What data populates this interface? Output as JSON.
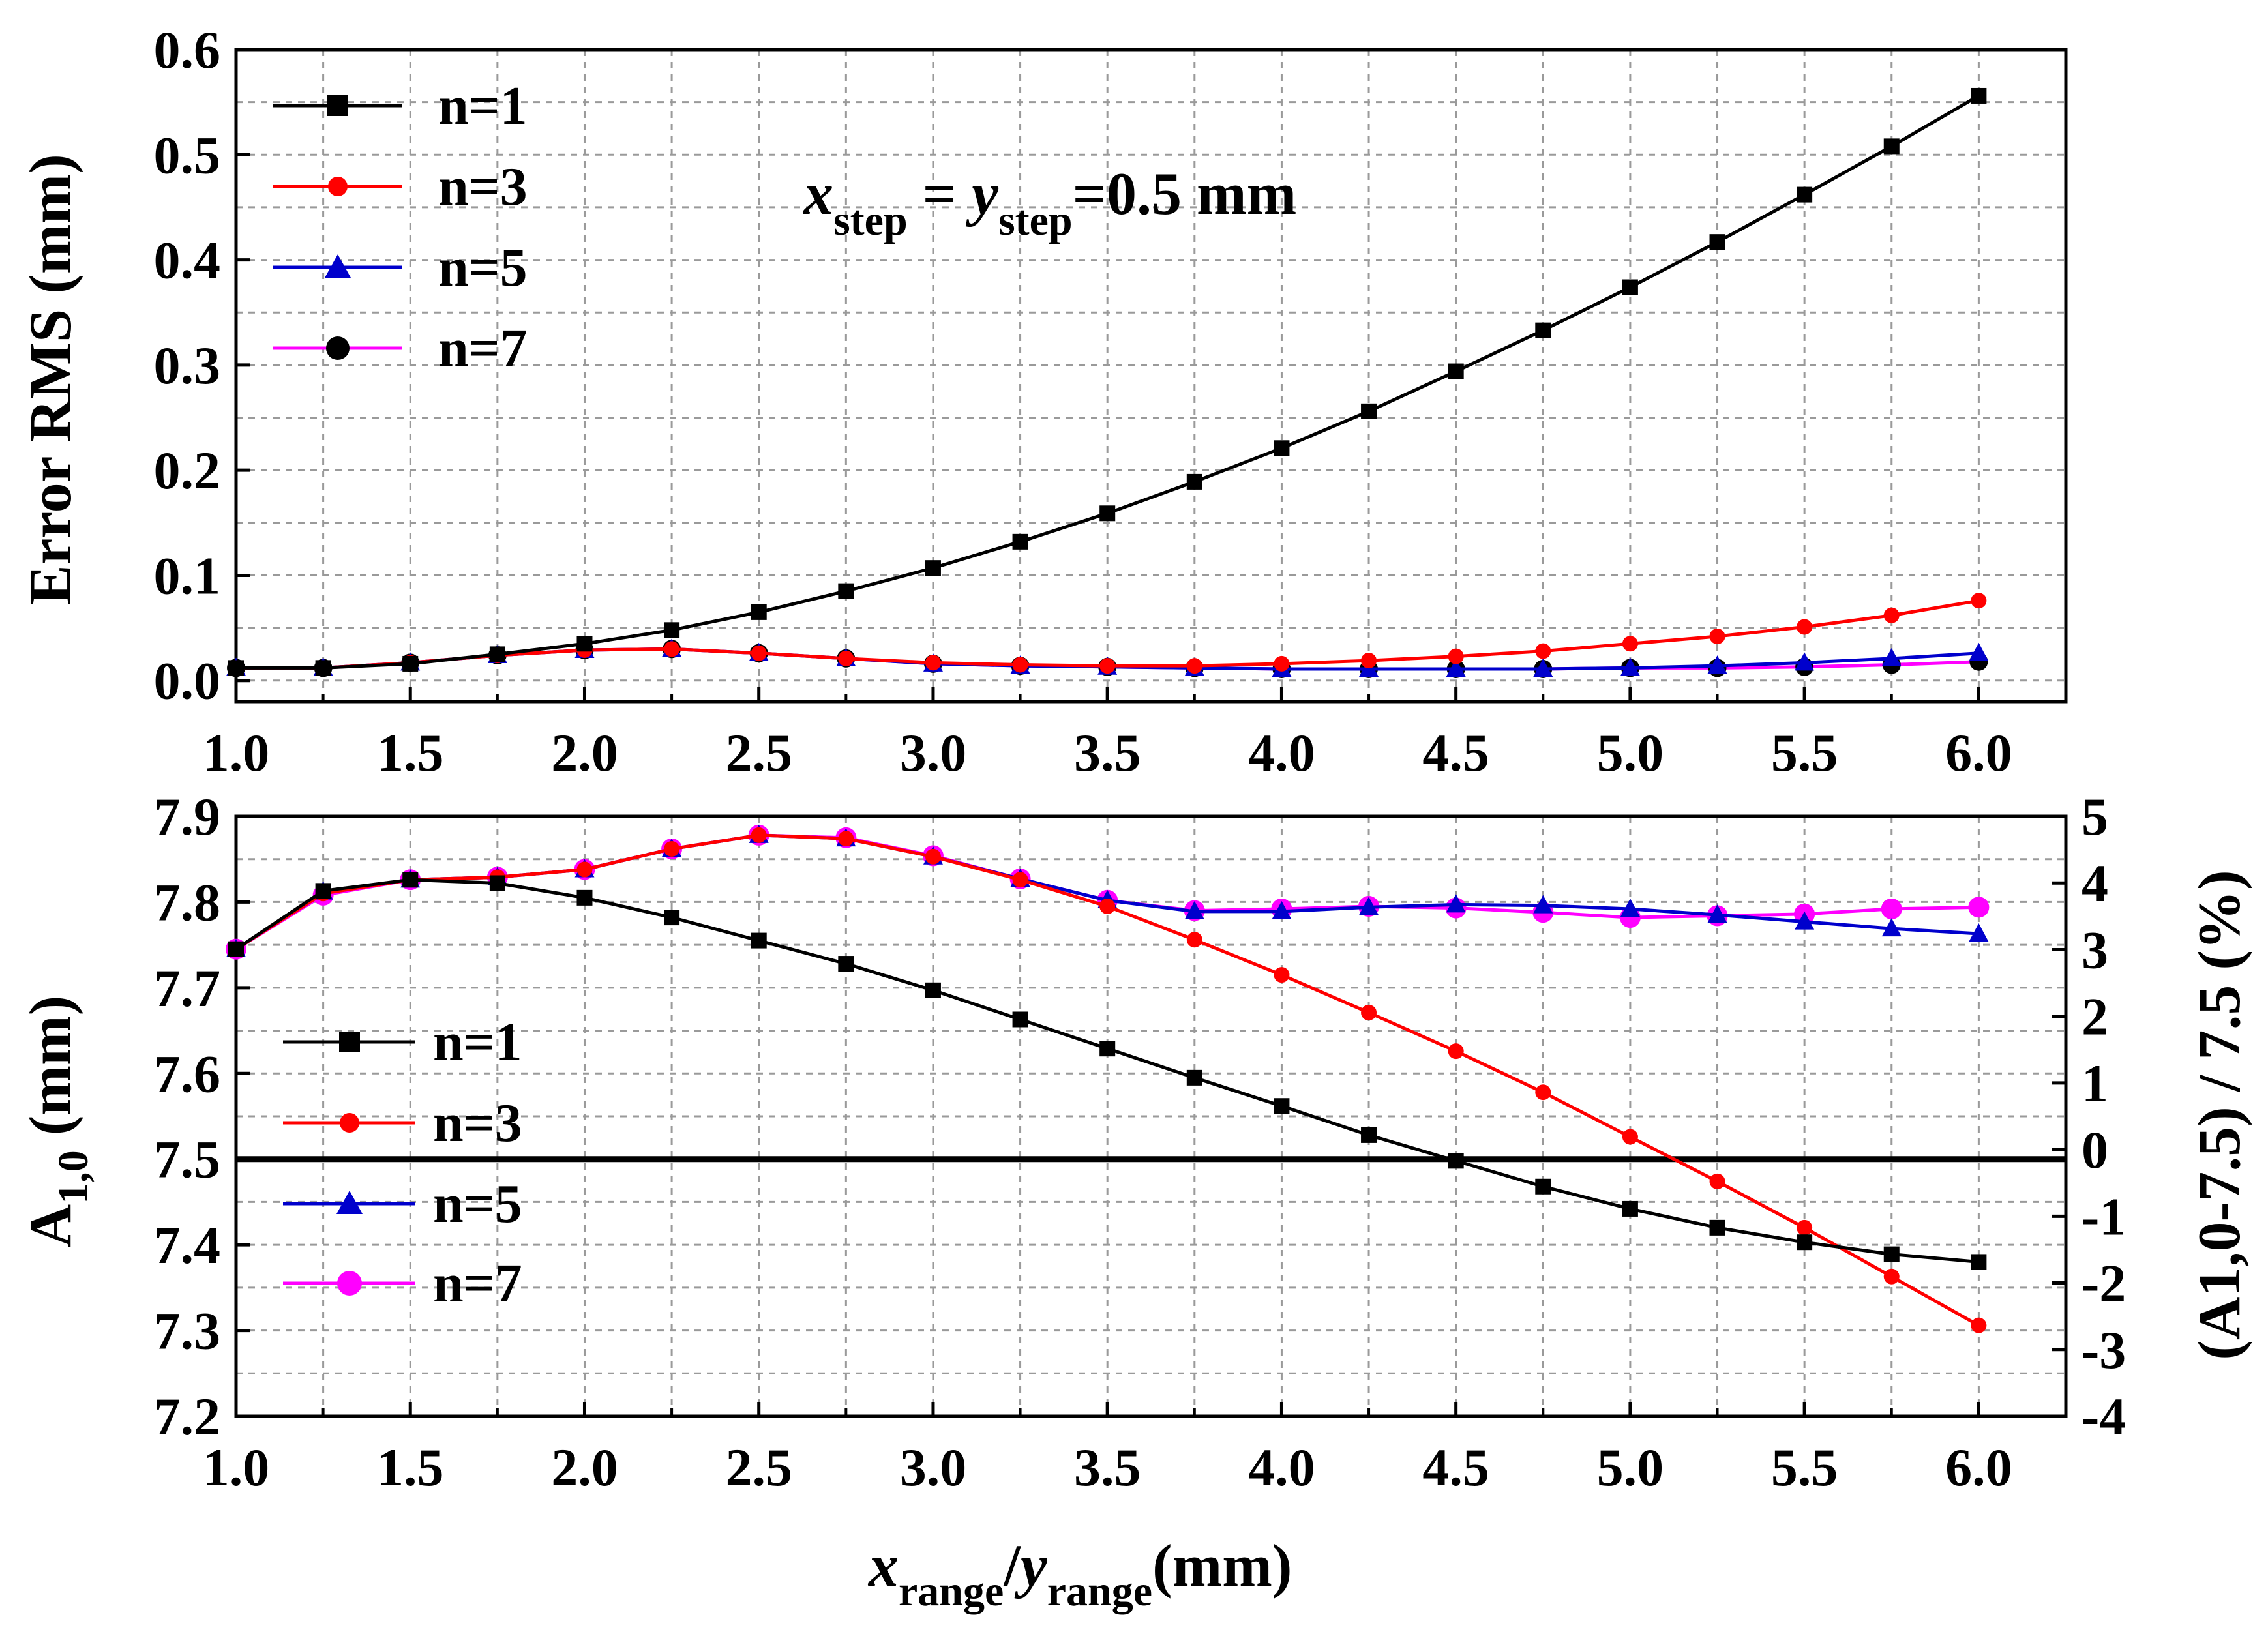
{
  "chart_data": [
    {
      "type": "line",
      "panel": "top",
      "ylabel": "Error RMS (mm)",
      "xlim": [
        1.0,
        6.25
      ],
      "ylim": [
        -0.02,
        0.6
      ],
      "x_tick_labels": [
        "1.0",
        "1.5",
        "2.0",
        "2.5",
        "3.0",
        "3.5",
        "4.0",
        "4.5",
        "5.0",
        "5.5",
        "6.0"
      ],
      "y_tick_labels": [
        "0.0",
        "0.1",
        "0.2",
        "0.3",
        "0.4",
        "0.5",
        "0.6"
      ],
      "y_tick_values": [
        0.0,
        0.1,
        0.2,
        0.3,
        0.4,
        0.5,
        0.6
      ],
      "grid": true,
      "legend_position": "top-left",
      "annotation": {
        "x_sym": "x",
        "x_sub": "step",
        "eq1": " = ",
        "y_sym": "y",
        "y_sub": "step",
        "rest": "=0.5 mm"
      },
      "x": [
        1.0,
        1.25,
        1.5,
        1.75,
        2.0,
        2.25,
        2.5,
        2.75,
        3.0,
        3.25,
        3.5,
        3.75,
        4.0,
        4.25,
        4.5,
        4.75,
        5.0,
        5.25,
        5.5,
        5.75,
        6.0
      ],
      "series": [
        {
          "name": "n=1",
          "color": "#000000",
          "marker": "square",
          "values": [
            0.012,
            0.012,
            0.016,
            0.025,
            0.035,
            0.048,
            0.065,
            0.085,
            0.107,
            0.132,
            0.159,
            0.189,
            0.221,
            0.256,
            0.294,
            0.333,
            0.374,
            0.417,
            0.462,
            0.508,
            0.556
          ]
        },
        {
          "name": "n=3",
          "color": "#ff0000",
          "marker": "circle-small",
          "values": [
            0.012,
            0.012,
            0.017,
            0.024,
            0.029,
            0.03,
            0.026,
            0.021,
            0.017,
            0.015,
            0.014,
            0.014,
            0.016,
            0.019,
            0.023,
            0.028,
            0.035,
            0.042,
            0.051,
            0.062,
            0.076
          ]
        },
        {
          "name": "n=5",
          "color": "#0000cc",
          "marker": "triangle",
          "values": [
            0.012,
            0.012,
            0.017,
            0.024,
            0.029,
            0.03,
            0.026,
            0.021,
            0.016,
            0.014,
            0.013,
            0.012,
            0.011,
            0.011,
            0.011,
            0.011,
            0.012,
            0.014,
            0.017,
            0.021,
            0.026
          ]
        },
        {
          "name": "n=7",
          "color": "#ff00ff",
          "marker": "circle-black",
          "values": [
            0.012,
            0.012,
            0.017,
            0.024,
            0.029,
            0.03,
            0.026,
            0.021,
            0.016,
            0.014,
            0.013,
            0.012,
            0.011,
            0.011,
            0.011,
            0.011,
            0.012,
            0.012,
            0.013,
            0.015,
            0.018
          ]
        }
      ]
    },
    {
      "type": "line",
      "panel": "bottom",
      "xlabel": {
        "x_sym": "x",
        "x_sub": "range",
        "slash": "/",
        "y_sym": "y",
        "y_sub": "range",
        "unit": "(mm)"
      },
      "ylabel": {
        "base": "A",
        "sub": "1,0",
        "unit": " (mm)"
      },
      "y2label": "(A1,0-7.5) / 7.5   (%)",
      "xlim": [
        1.0,
        6.25
      ],
      "ylim": [
        7.2,
        7.9
      ],
      "y2lim": [
        -4,
        5
      ],
      "x_tick_labels": [
        "1.0",
        "1.5",
        "2.0",
        "2.5",
        "3.0",
        "3.5",
        "4.0",
        "4.5",
        "5.0",
        "5.5",
        "6.0"
      ],
      "y_tick_labels": [
        "7.2",
        "7.3",
        "7.4",
        "7.5",
        "7.6",
        "7.7",
        "7.8",
        "7.9"
      ],
      "y_tick_values": [
        7.2,
        7.3,
        7.4,
        7.5,
        7.6,
        7.7,
        7.8,
        7.9
      ],
      "y2_tick_labels": [
        "-4",
        "-3",
        "-2",
        "-1",
        "0",
        "1",
        "2",
        "3",
        "4",
        "5"
      ],
      "y2_tick_values": [
        -4,
        -3,
        -2,
        -1,
        0,
        1,
        2,
        3,
        4,
        5
      ],
      "reference_line": 7.5,
      "grid": true,
      "legend_position": "middle-left",
      "x": [
        1.0,
        1.25,
        1.5,
        1.75,
        2.0,
        2.25,
        2.5,
        2.75,
        3.0,
        3.25,
        3.5,
        3.75,
        4.0,
        4.25,
        4.5,
        4.75,
        5.0,
        5.25,
        5.5,
        5.75,
        6.0
      ],
      "series": [
        {
          "name": "n=1",
          "color": "#000000",
          "marker": "square",
          "values": [
            7.745,
            7.813,
            7.826,
            7.822,
            7.805,
            7.782,
            7.755,
            7.728,
            7.697,
            7.663,
            7.629,
            7.595,
            7.562,
            7.528,
            7.498,
            7.468,
            7.442,
            7.42,
            7.403,
            7.389,
            7.38
          ]
        },
        {
          "name": "n=3",
          "color": "#ff0000",
          "marker": "circle-small",
          "values": [
            7.745,
            7.81,
            7.826,
            7.829,
            7.838,
            7.862,
            7.878,
            7.874,
            7.853,
            7.826,
            7.795,
            7.756,
            7.715,
            7.671,
            7.626,
            7.578,
            7.526,
            7.474,
            7.42,
            7.363,
            7.306
          ]
        },
        {
          "name": "n=5",
          "color": "#0000cc",
          "marker": "triangle",
          "values": [
            7.745,
            7.812,
            7.826,
            7.829,
            7.838,
            7.862,
            7.878,
            7.874,
            7.853,
            7.827,
            7.802,
            7.789,
            7.789,
            7.794,
            7.797,
            7.796,
            7.792,
            7.785,
            7.777,
            7.769,
            7.763
          ]
        },
        {
          "name": "n=7",
          "color": "#ff00ff",
          "marker": "circle-large",
          "values": [
            7.745,
            7.808,
            7.826,
            7.829,
            7.838,
            7.862,
            7.878,
            7.875,
            7.854,
            7.827,
            7.802,
            7.79,
            7.792,
            7.795,
            7.793,
            7.788,
            7.782,
            7.784,
            7.786,
            7.792,
            7.794
          ]
        }
      ]
    }
  ]
}
